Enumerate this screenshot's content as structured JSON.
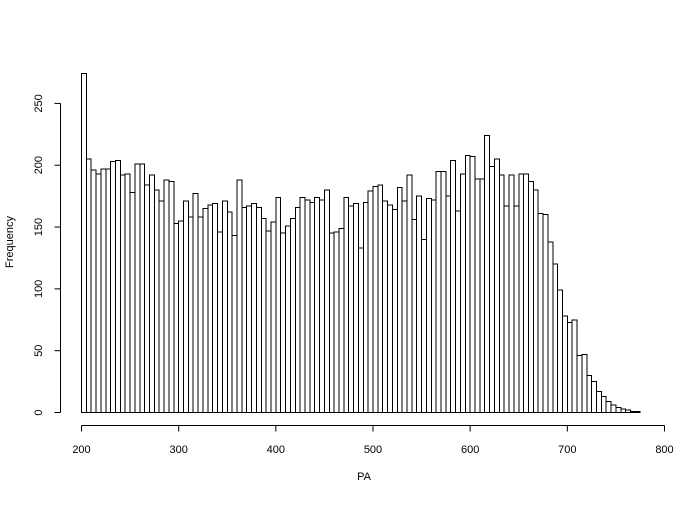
{
  "chart_data": {
    "type": "bar",
    "title": "",
    "xlabel": "PA",
    "ylabel": "Frequency",
    "xlim": [
      200,
      800
    ],
    "ylim": [
      0,
      275
    ],
    "xticks": [
      200,
      300,
      400,
      500,
      600,
      700,
      800
    ],
    "yticks": [
      0,
      50,
      100,
      150,
      200,
      250
    ],
    "bin_width": 5,
    "bins_start": 200,
    "values": [
      274,
      205,
      196,
      193,
      197,
      197,
      203,
      204,
      192,
      193,
      178,
      201,
      201,
      184,
      192,
      180,
      171,
      188,
      187,
      153,
      155,
      171,
      158,
      177,
      158,
      165,
      168,
      169,
      146,
      171,
      162,
      143,
      188,
      166,
      167,
      169,
      166,
      157,
      147,
      154,
      174,
      145,
      151,
      157,
      166,
      174,
      172,
      170,
      174,
      172,
      180,
      145,
      146,
      149,
      174,
      167,
      169,
      133,
      170,
      179,
      183,
      184,
      171,
      168,
      164,
      182,
      171,
      192,
      156,
      175,
      140,
      173,
      172,
      195,
      195,
      175,
      204,
      163,
      193,
      208,
      207,
      189,
      189,
      224,
      199,
      205,
      192,
      167,
      192,
      167,
      193,
      193,
      187,
      180,
      161,
      160,
      138,
      120,
      99,
      78,
      73,
      75,
      46,
      47,
      30,
      25,
      17,
      13,
      9,
      6,
      4,
      3,
      2,
      1,
      1
    ],
    "grid": false,
    "legend": "none"
  }
}
